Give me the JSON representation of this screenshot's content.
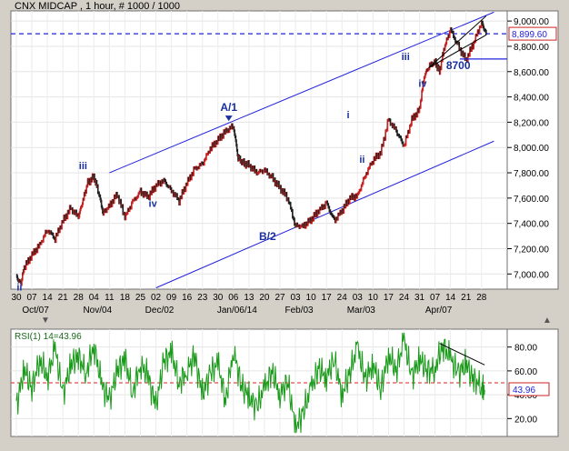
{
  "colors": {
    "background": "#d4d0c8",
    "panel": "#ffffff",
    "price_up": "#e02020",
    "price_down": "#1a1a1a",
    "channel": "#2222dd",
    "wave_label": "#1a2fa0",
    "dashed_level": "#2222dd",
    "rsi_line": "#1a9a1a",
    "rsi_ref": "#dd2020",
    "last_label_border": "#cc2222"
  },
  "chart_data": [
    {
      "type": "line",
      "title": "CNX MIDCAP , 1 hour, # 1000 / 1000",
      "ylim": [
        6880,
        9080
      ],
      "y_ticks": [
        "9,000.00",
        "8,800.00",
        "8,600.00",
        "8,400.00",
        "8,200.00",
        "8,000.00",
        "7,800.00",
        "7,600.00",
        "7,400.00",
        "7,200.00",
        "7,000.00"
      ],
      "y_tick_values": [
        9000,
        8800,
        8600,
        8400,
        8200,
        8000,
        7800,
        7600,
        7400,
        7200,
        7000
      ],
      "x_day_labels": [
        "30",
        "07",
        "14",
        "21",
        "28",
        "04",
        "11",
        "18",
        "25",
        "02",
        "09",
        "16",
        "23",
        "30",
        "06",
        "13",
        "20",
        "27",
        "03",
        "10",
        "17",
        "24",
        "03",
        "10",
        "17",
        "24",
        "31",
        "07",
        "14",
        "21",
        "28"
      ],
      "x_month_labels": [
        "Oct/07",
        "Nov/04",
        "Dec/02",
        "Jan/06/14",
        "Feb/03",
        "Mar/03",
        "Apr/07"
      ],
      "x_month_positions": [
        1,
        5,
        9,
        14,
        18,
        22,
        27
      ],
      "price_series": {
        "name": "",
        "x": [
          0,
          0.3,
          0.5,
          1,
          1.5,
          2,
          2.5,
          3,
          3.5,
          4,
          4.3,
          4.6,
          5,
          5.3,
          5.6,
          6,
          6.5,
          7,
          7.5,
          8,
          8.5,
          9,
          9.5,
          10,
          10.5,
          11,
          11.5,
          12,
          12.5,
          13,
          13.5,
          14,
          14.3,
          14.6,
          15,
          15.5,
          16,
          16.5,
          17,
          17.5,
          18,
          18.5,
          19,
          19.5,
          20,
          20.5,
          21,
          21.5,
          22,
          22.5,
          23,
          23.5,
          24,
          24.5,
          25,
          25.5,
          26,
          26.3,
          26.6,
          27,
          27.3,
          27.6,
          28,
          28.5,
          29,
          29.5,
          30,
          30.3
        ],
        "values": [
          6980,
          6920,
          7050,
          7150,
          7230,
          7350,
          7280,
          7420,
          7520,
          7450,
          7580,
          7720,
          7770,
          7650,
          7480,
          7540,
          7630,
          7450,
          7570,
          7650,
          7610,
          7700,
          7740,
          7660,
          7580,
          7720,
          7830,
          7870,
          7990,
          8060,
          8130,
          8170,
          7920,
          7880,
          7860,
          7800,
          7820,
          7760,
          7680,
          7600,
          7380,
          7380,
          7430,
          7500,
          7560,
          7420,
          7500,
          7600,
          7620,
          7780,
          7900,
          7960,
          8220,
          8130,
          8010,
          8220,
          8300,
          8560,
          8640,
          8680,
          8600,
          8790,
          8930,
          8800,
          8690,
          8830,
          8990,
          8900
        ]
      },
      "dashed_level": {
        "value": 8899.6,
        "label": "8,899.60"
      },
      "channel": {
        "upper": [
          {
            "x": 6,
            "y": 7800
          },
          {
            "x": 30.8,
            "y": 9070
          }
        ],
        "lower": [
          {
            "x": 9,
            "y": 6890
          },
          {
            "x": 30.8,
            "y": 8050
          }
        ]
      },
      "wave_labels": [
        {
          "text": "ii",
          "x": 0.2,
          "y": 6870
        },
        {
          "text": "iii",
          "x": 4.3,
          "y": 7830
        },
        {
          "text": "iv",
          "x": 8.8,
          "y": 7530
        },
        {
          "text": "A/1",
          "x": 13.7,
          "y": 8290
        },
        {
          "text": "B/2",
          "x": 16.2,
          "y": 7270
        },
        {
          "text": "i",
          "x": 21.4,
          "y": 8230
        },
        {
          "text": "ii",
          "x": 22.3,
          "y": 7880
        },
        {
          "text": "iii",
          "x": 25.1,
          "y": 8690
        },
        {
          "text": "iv",
          "x": 26.2,
          "y": 8480
        },
        {
          "text": "8700",
          "x": 28.5,
          "y": 8620
        }
      ],
      "level_8700": {
        "value": 8700,
        "from_x": 28.6
      },
      "triangle": [
        {
          "x": 26.6,
          "y": 8630
        },
        {
          "x": 30.3,
          "y": 8890
        },
        {
          "x": 30.3,
          "y": 9040
        }
      ]
    },
    {
      "type": "line",
      "title": "RSI(1) 14=43.96",
      "ylim": [
        5,
        95
      ],
      "y_ticks": [
        "80.00",
        "60.00",
        "40.00",
        "20.00"
      ],
      "y_tick_values": [
        80,
        60,
        40,
        20
      ],
      "reference_line": 50,
      "last_value_label": "43.96",
      "trendline": [
        {
          "x": 27.3,
          "y": 83
        },
        {
          "x": 30.2,
          "y": 65
        }
      ],
      "rsi_series": {
        "name": "",
        "x": [
          0,
          0.5,
          1,
          1.5,
          2,
          2.5,
          3,
          3.5,
          4,
          4.5,
          5,
          5.5,
          6,
          6.5,
          7,
          7.5,
          8,
          8.5,
          9,
          9.5,
          10,
          10.5,
          11,
          11.5,
          12,
          12.5,
          13,
          13.5,
          14,
          14.5,
          15,
          15.5,
          16,
          16.5,
          17,
          17.5,
          18,
          18.5,
          19,
          19.5,
          20,
          20.5,
          21,
          21.5,
          22,
          22.5,
          23,
          23.5,
          24,
          24.5,
          25,
          25.5,
          26,
          26.5,
          27,
          27.5,
          28,
          28.5,
          29,
          29.5,
          30,
          30.2
        ],
        "values": [
          30,
          62,
          45,
          70,
          55,
          78,
          40,
          65,
          72,
          58,
          82,
          48,
          35,
          60,
          70,
          42,
          66,
          55,
          30,
          68,
          75,
          50,
          60,
          72,
          40,
          58,
          66,
          35,
          78,
          48,
          38,
          30,
          45,
          60,
          40,
          52,
          12,
          25,
          45,
          62,
          55,
          70,
          40,
          58,
          80,
          52,
          66,
          44,
          74,
          60,
          86,
          55,
          70,
          60,
          62,
          82,
          70,
          58,
          66,
          52,
          48,
          44
        ]
      }
    }
  ],
  "toolbar": {
    "icon_up": "up-arrow-icon",
    "icon_down": "down-arrow-icon"
  }
}
